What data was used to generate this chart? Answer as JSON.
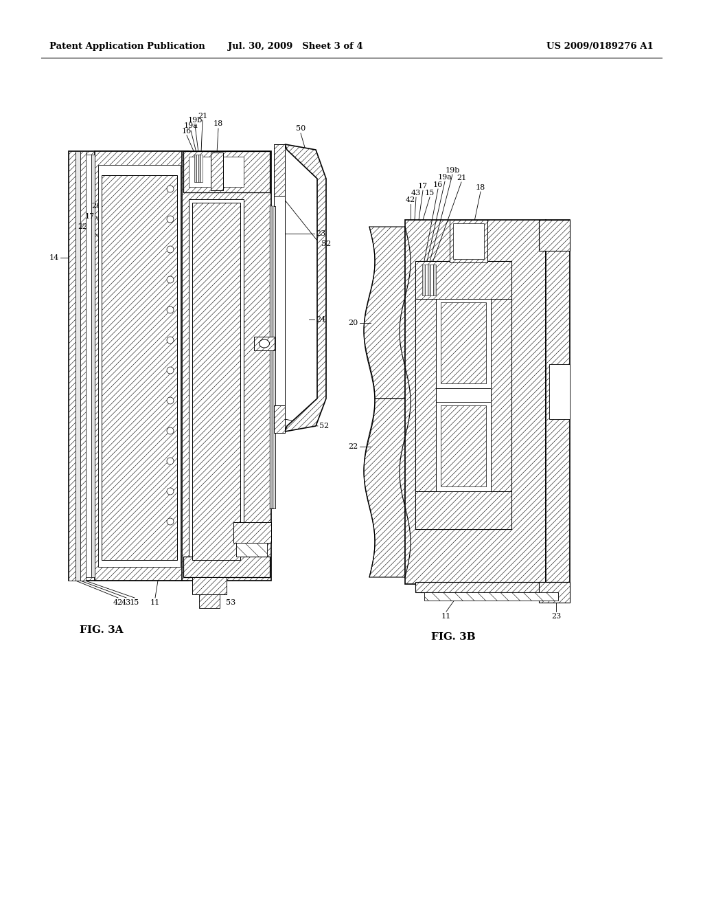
{
  "background_color": "#ffffff",
  "header_left": "Patent Application Publication",
  "header_center": "Jul. 30, 2009   Sheet 3 of 4",
  "header_right": "US 2009/0189276 A1",
  "fig3a_label": "FIG. 3A",
  "fig3b_label": "FIG. 3B",
  "line_color": "#000000",
  "hatch_density": "////",
  "fig_bg": "#f8f8f8"
}
